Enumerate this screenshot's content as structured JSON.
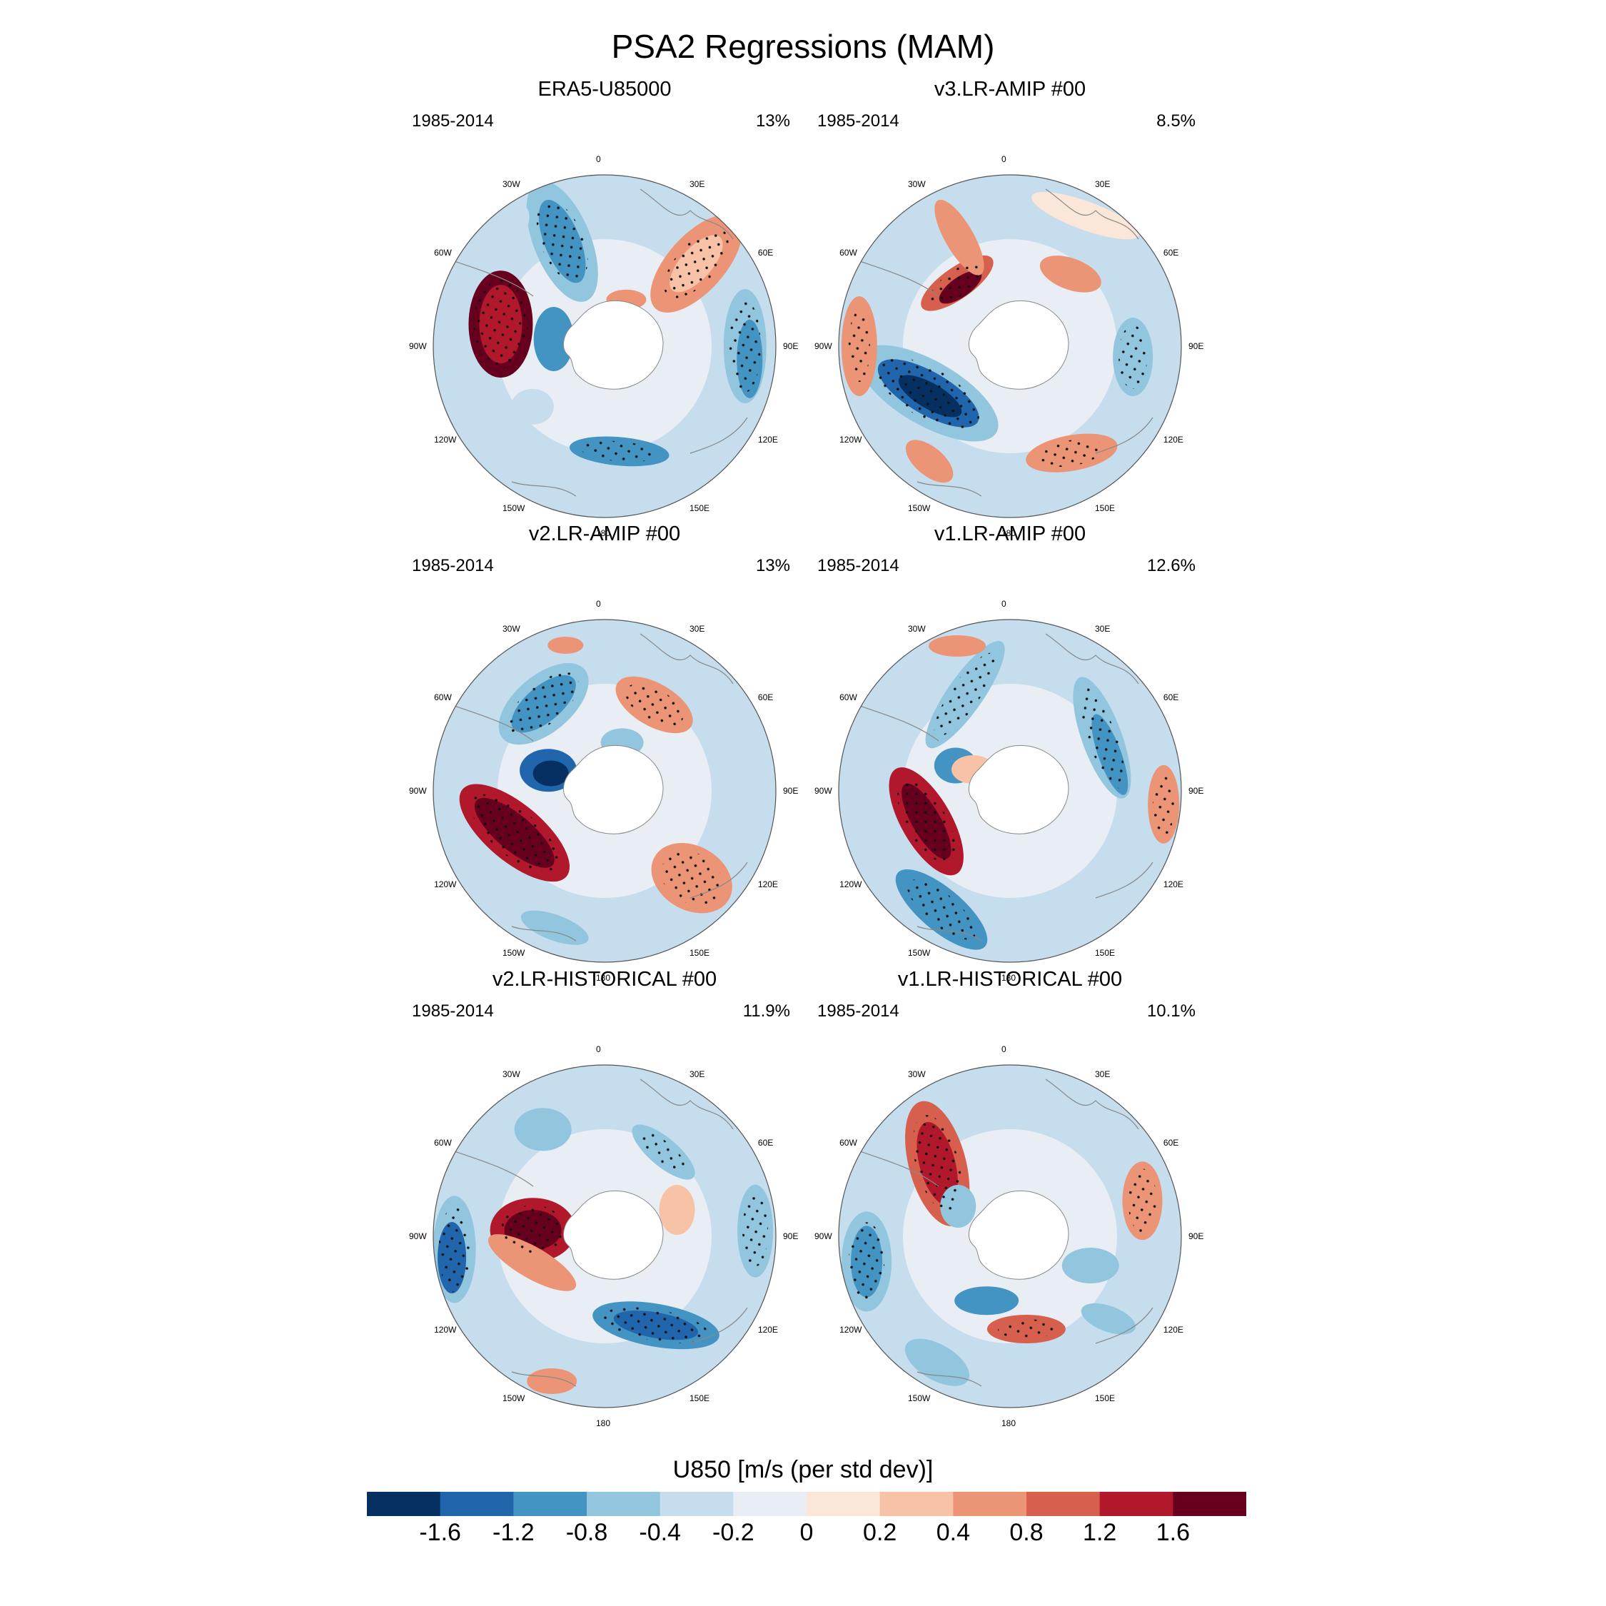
{
  "title": "PSA2 Regressions (MAM)",
  "panels": [
    {
      "title": "ERA5-U85000",
      "years": "1985-2014",
      "pct": "13%"
    },
    {
      "title": "v3.LR-AMIP  #00",
      "years": "1985-2014",
      "pct": "8.5%"
    },
    {
      "title": "v2.LR-AMIP  #00",
      "years": "1985-2014",
      "pct": "13%"
    },
    {
      "title": "v1.LR-AMIP  #00",
      "years": "1985-2014",
      "pct": "12.6%"
    },
    {
      "title": "v2.LR-HISTORICAL  #00",
      "years": "1985-2014",
      "pct": "11.9%"
    },
    {
      "title": "v1.LR-HISTORICAL  #00",
      "years": "1985-2014",
      "pct": "10.1%"
    }
  ],
  "lon_labels": [
    "0",
    "30E",
    "60E",
    "90E",
    "120E",
    "150E",
    "180",
    "150W",
    "120W",
    "90W",
    "60W",
    "30W"
  ],
  "colorbar": {
    "title": "U850 [m/s (per std dev)]",
    "levels": [
      "-1.6",
      "-1.2",
      "-0.8",
      "-0.4",
      "-0.2",
      "0",
      "0.2",
      "0.4",
      "0.8",
      "1.2",
      "1.6"
    ],
    "colors": [
      "#053061",
      "#2166ac",
      "#4393c3",
      "#92c5de",
      "#c5dded",
      "#e8eef4",
      "#fbe6da",
      "#f7c2a6",
      "#ec9576",
      "#d6604d",
      "#b2182b",
      "#67001f"
    ]
  }
}
